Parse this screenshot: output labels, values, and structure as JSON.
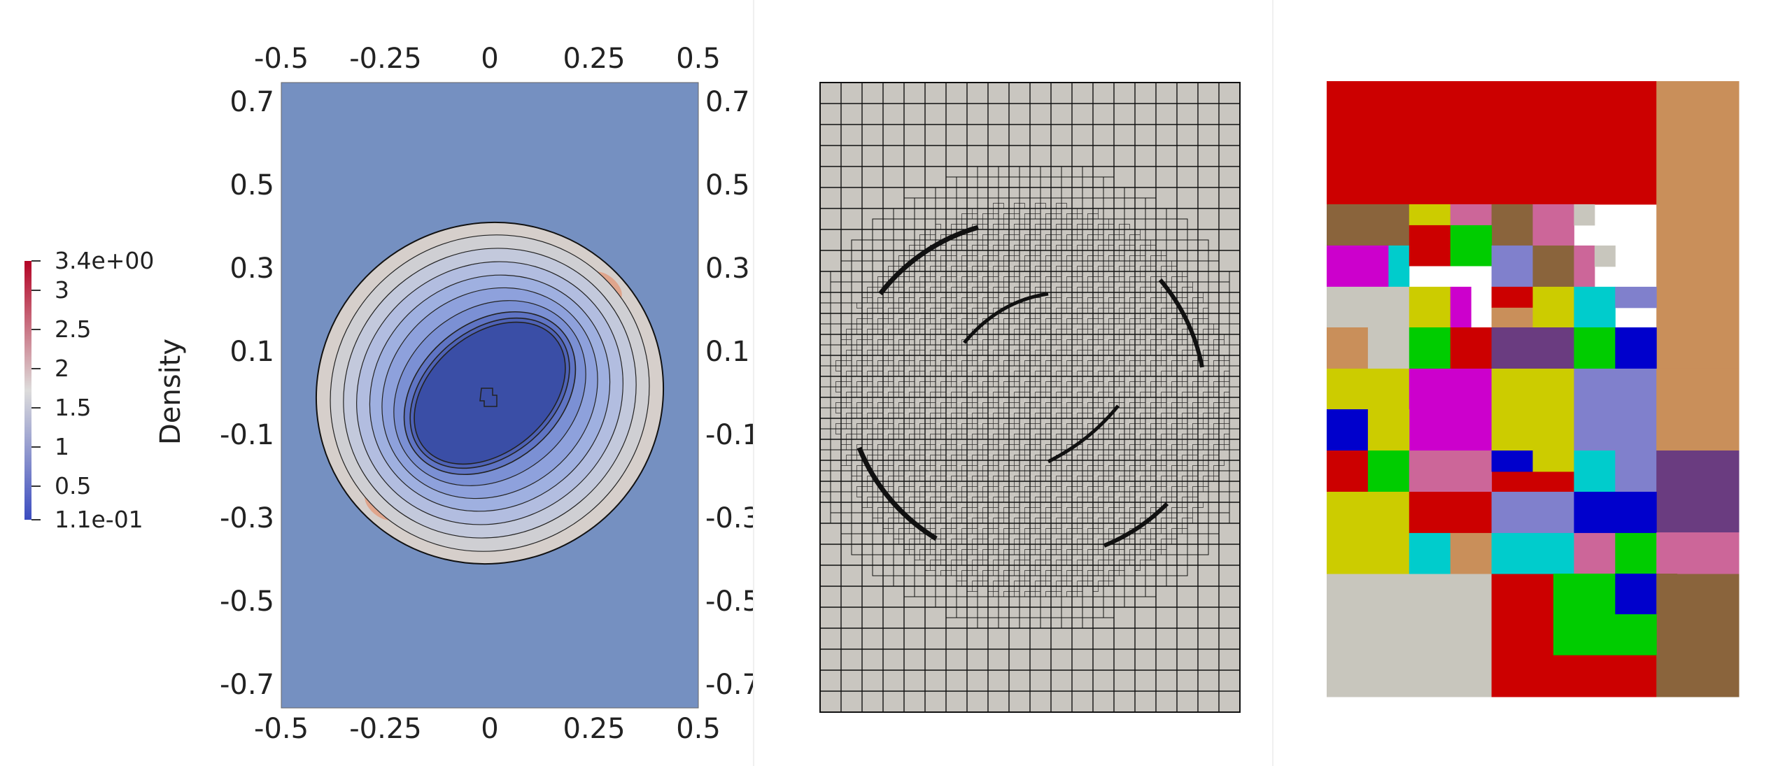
{
  "colorbar": {
    "title": "Density",
    "labels": [
      "3.4e+00",
      "3",
      "2.5",
      "2",
      "1.5",
      "1",
      "0.5",
      "1.1e-01"
    ],
    "colors": {
      "high": "#b40426",
      "mid": "#dddcdb",
      "low": "#3b4cc0"
    }
  },
  "density_plot": {
    "x_ticks": [
      "-0.5",
      "-0.25",
      "0",
      "0.25",
      "0.5"
    ],
    "y_ticks": [
      "0.7",
      "0.5",
      "0.3",
      "0.1",
      "-0.1",
      "-0.3",
      "-0.5",
      "-0.7"
    ],
    "colors": {
      "background": "#7590c1",
      "ring": "#d6cfcb",
      "core": "#3a4ea6"
    }
  },
  "mesh_plot": {
    "colors": {
      "cell": "#c9c6c0",
      "line": "#111111"
    }
  },
  "partition_plot": {
    "colors": [
      "#cc0000",
      "#c98f5a",
      "#8a643c",
      "#cc00cc",
      "#cccc00",
      "#00cc00",
      "#0000cc",
      "#00cccc",
      "#8080cc",
      "#cc6699",
      "#c8c6bd",
      "#6a3c80"
    ]
  }
}
